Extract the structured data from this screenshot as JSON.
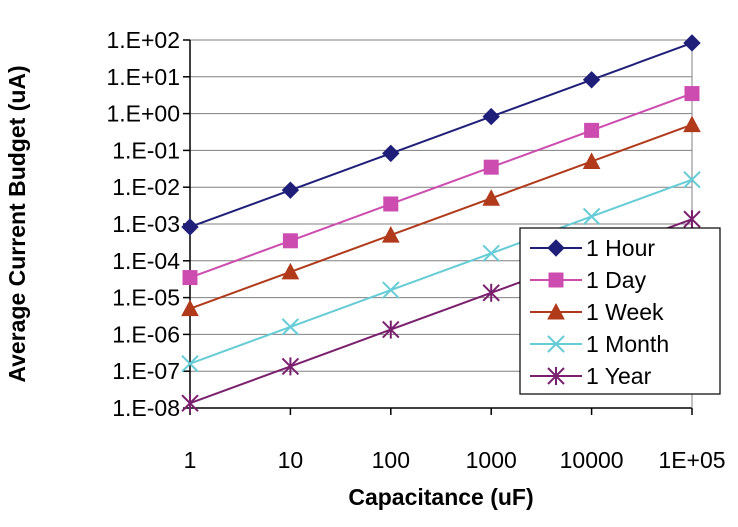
{
  "chart_data": {
    "type": "line",
    "xlabel": "Capacitance (uF)",
    "ylabel": "Average Current Budget (uA)",
    "x_scale": "log",
    "y_scale": "log",
    "x": [
      1,
      10,
      100,
      1000,
      10000,
      100000
    ],
    "x_tick_labels": [
      "1",
      "10",
      "100",
      "1000",
      "10000",
      "1E+05"
    ],
    "y_tick_labels": [
      "1.E+02",
      "1.E+01",
      "1.E+00",
      "1.E-01",
      "1.E-02",
      "1.E-03",
      "1.E-04",
      "1.E-05",
      "1.E-06",
      "1.E-07",
      "1.E-08"
    ],
    "ylim": [
      1e-08,
      100
    ],
    "xlim": [
      1,
      100000
    ],
    "grid": "horizontal",
    "legend_position": "right",
    "series": [
      {
        "name": "1 Hour",
        "color": "#1f1f7a",
        "marker": "diamond",
        "values": [
          0.00083,
          0.0083,
          0.083,
          0.83,
          8.3,
          83
        ]
      },
      {
        "name": "1 Day",
        "color": "#cc4cb0",
        "marker": "square",
        "values": [
          3.5e-05,
          0.00035,
          0.0035,
          0.035,
          0.35,
          3.5
        ]
      },
      {
        "name": "1 Week",
        "color": "#b03a1a",
        "marker": "triangle",
        "values": [
          5e-06,
          5e-05,
          0.0005,
          0.005,
          0.05,
          0.5
        ]
      },
      {
        "name": "1 Month",
        "color": "#66ccd6",
        "marker": "x",
        "values": [
          1.6e-07,
          1.6e-06,
          1.6e-05,
          0.00016,
          0.0016,
          0.016
        ]
      },
      {
        "name": "1 Year",
        "color": "#7a1f6e",
        "marker": "star",
        "values": [
          1.35e-08,
          1.35e-07,
          1.35e-06,
          1.35e-05,
          0.000135,
          0.00135
        ]
      }
    ]
  }
}
